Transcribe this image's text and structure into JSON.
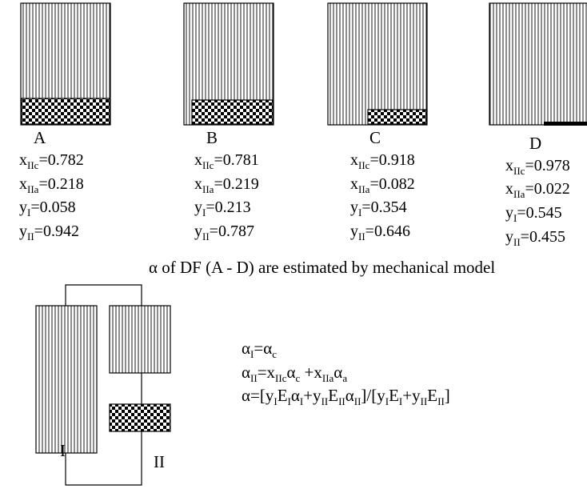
{
  "panels": [
    {
      "label": "A",
      "values": [
        {
          "main": "x",
          "sub": "IIc",
          "rest": "=0.782"
        },
        {
          "main": "x",
          "sub": "IIa",
          "rest": "=0.218"
        },
        {
          "main": "y",
          "sub": "I",
          "rest": "=0.058"
        },
        {
          "main": "y",
          "sub": "II",
          "rest": "=0.942"
        }
      ]
    },
    {
      "label": "B",
      "values": [
        {
          "main": "x",
          "sub": "IIc",
          "rest": "=0.781"
        },
        {
          "main": "x",
          "sub": "IIa",
          "rest": "=0.219"
        },
        {
          "main": "y",
          "sub": "I",
          "rest": "=0.213"
        },
        {
          "main": "y",
          "sub": "II",
          "rest": "=0.787"
        }
      ]
    },
    {
      "label": "C",
      "values": [
        {
          "main": "x",
          "sub": "IIc",
          "rest": "=0.918"
        },
        {
          "main": "x",
          "sub": "IIa",
          "rest": "=0.082"
        },
        {
          "main": "y",
          "sub": "I",
          "rest": "=0.354"
        },
        {
          "main": "y",
          "sub": "II",
          "rest": "=0.646"
        }
      ]
    },
    {
      "label": "D",
      "values": [
        {
          "main": "x",
          "sub": "IIc",
          "rest": "=0.978"
        },
        {
          "main": "x",
          "sub": "IIa",
          "rest": "=0.022"
        },
        {
          "main": "y",
          "sub": "I",
          "rest": "=0.545"
        },
        {
          "main": "y",
          "sub": "II",
          "rest": "=0.455"
        }
      ]
    }
  ],
  "caption": "α of DF (A - D) are estimated by mechanical model",
  "model": {
    "label_I": "I",
    "label_II": "II"
  },
  "equations": {
    "eq1": {
      "a": "α",
      "a_sub": "I",
      "b": "=α",
      "b_sub": "c"
    },
    "eq2": {
      "a": "α",
      "a_sub": "II",
      "b": "=x",
      "b_sub": "IIc",
      "c": "α",
      "c_sub": "c",
      "d": " +x",
      "d_sub": "IIa",
      "e": "α",
      "e_sub": "a"
    },
    "eq3": {
      "p0": "α=[y",
      "s0": "I",
      "p1": "E",
      "s1": "I",
      "p2": "α",
      "s2": "I",
      "p3": "+y",
      "s3": "II",
      "p4": "E",
      "s4": "II",
      "p5": "α",
      "s5": "II",
      "p6": "]/[y",
      "s6": "I",
      "p7": "E",
      "s7": "I",
      "p8": "+y",
      "s8": "II",
      "p9": "E",
      "s9": "II",
      "p10": "]"
    }
  }
}
